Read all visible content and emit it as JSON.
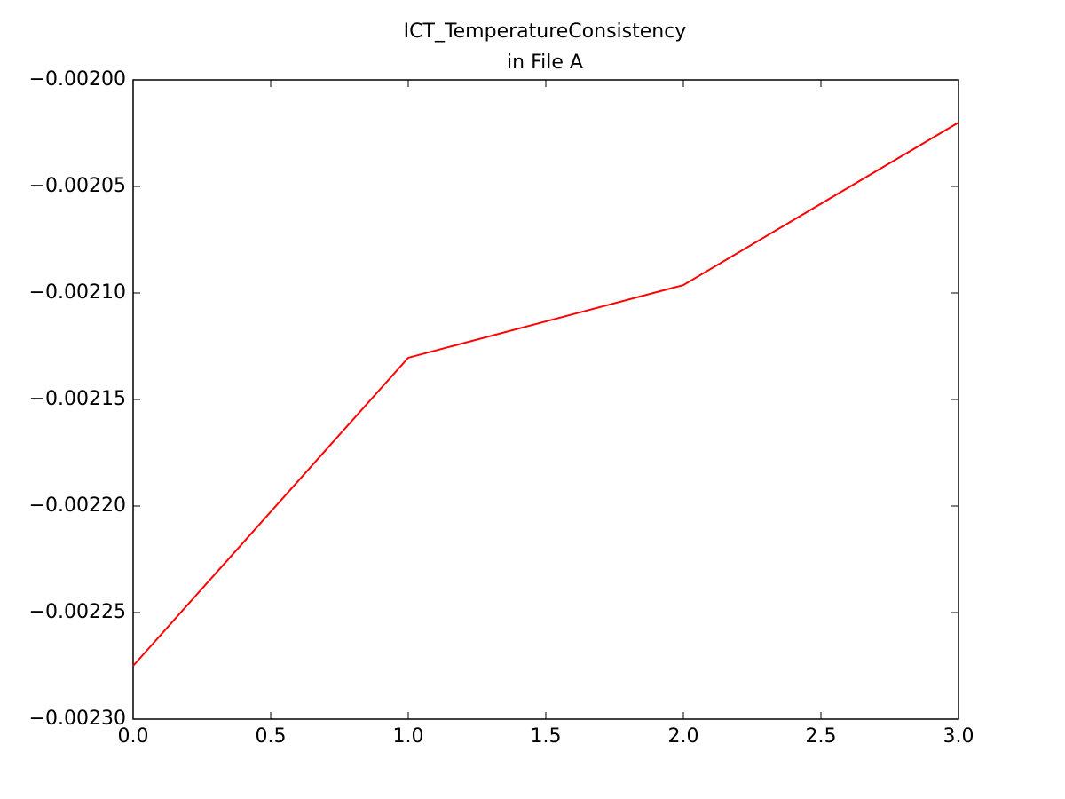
{
  "chart_data": {
    "type": "line",
    "title": [
      "ICT_TemperatureConsistency",
      "in File A"
    ],
    "x": [
      0,
      1,
      2,
      3
    ],
    "values": [
      -0.002275,
      -0.0021304,
      -0.0020963,
      -0.00202
    ],
    "color": "#ff0000",
    "xlim": [
      0,
      3
    ],
    "ylim": [
      -0.0023,
      -0.002
    ],
    "xticks": [
      {
        "value": 0,
        "label": "0.0"
      },
      0.5,
      {
        "value": 1,
        "label": "1.0"
      },
      1.5,
      {
        "value": 2,
        "label": "2.0"
      },
      2.5,
      {
        "value": 3,
        "label": "3.0"
      }
    ],
    "yticks": [
      {
        "value": -0.0023,
        "label": "−0.00230"
      },
      {
        "value": -0.00225,
        "label": "−0.00225"
      },
      {
        "value": -0.0022,
        "label": "−0.00220"
      },
      {
        "value": -0.00215,
        "label": "−0.00215"
      },
      {
        "value": -0.0021,
        "label": "−0.00210"
      },
      {
        "value": -0.00205,
        "label": "−0.00205"
      },
      {
        "value": -0.002,
        "label": "−0.00200"
      }
    ],
    "grid": false
  }
}
